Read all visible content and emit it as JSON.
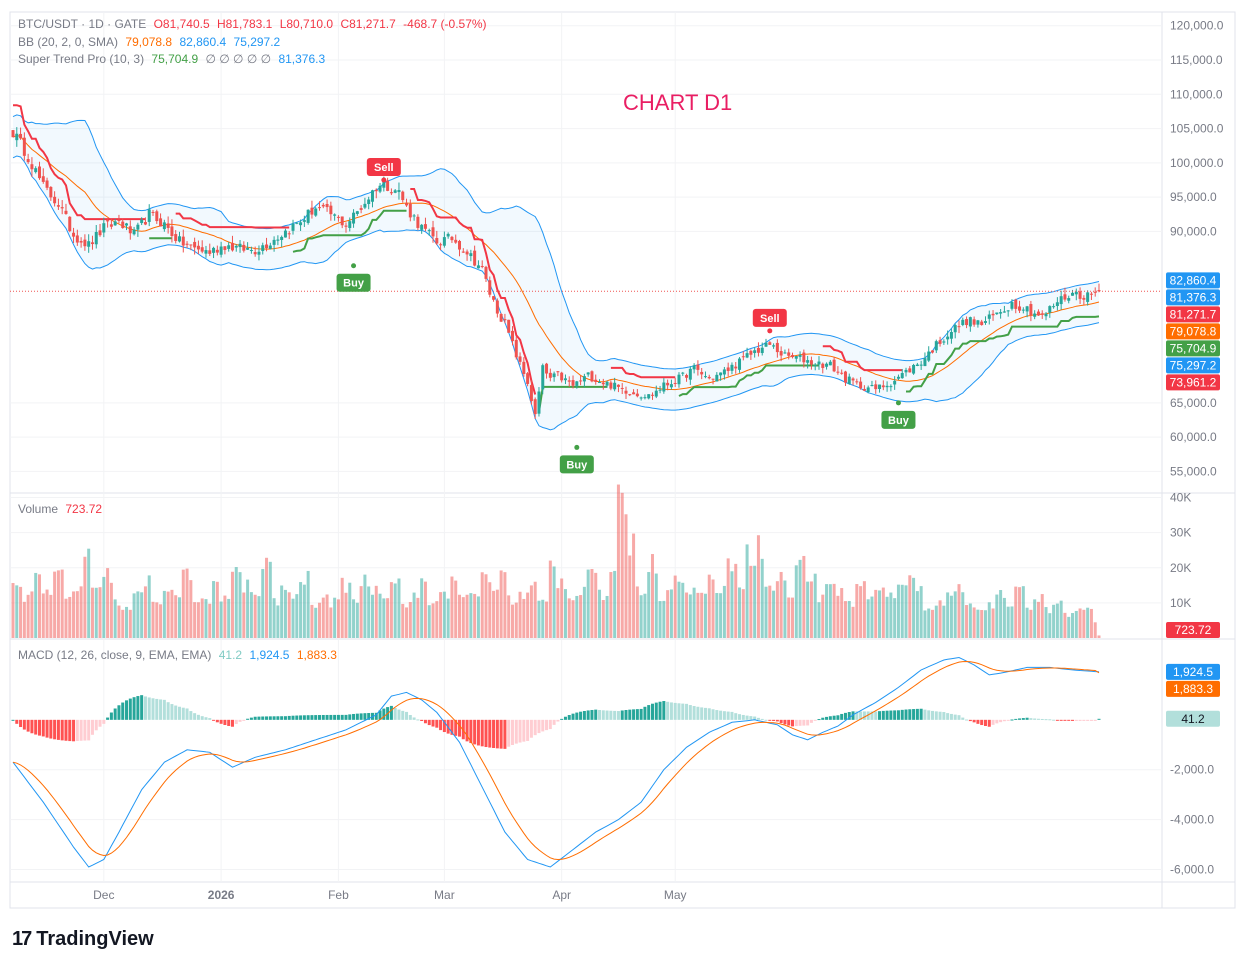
{
  "legend": {
    "symbol": "BTC/USDT · 1D · GATE",
    "ohlc": {
      "o": "O81,740.5",
      "h": "H81,783.1",
      "l": "L80,710.0",
      "c": "C81,271.7",
      "chg": "-468.7 (-0.57%)"
    },
    "bb_label": "BB (20, 2, 0, SMA)",
    "bb_values": [
      "79,078.8",
      "82,860.4",
      "75,297.2"
    ],
    "st_label": "Super Trend Pro (10, 3)",
    "st_value": "75,704.9",
    "st_empty": "∅ ∅ ∅ ∅ ∅",
    "st_value2": "81,376.3",
    "volume_label": "Volume",
    "volume_value": "723.72",
    "macd_label": "MACD (12, 26, close, 9, EMA, EMA)",
    "macd_values": [
      "41.2",
      "1,924.5",
      "1,883.3"
    ]
  },
  "title": "CHART D1",
  "logo_text": "TradingView",
  "colors": {
    "up": "#26a69a",
    "down": "#ef5350",
    "bb_basis": "#ff6d00",
    "bb_band": "#2196f3",
    "st_up": "#43a047",
    "st_down": "#f23645"
  },
  "chart_data": {
    "type": "candlestick",
    "title": "CHART D1",
    "price_axis": {
      "ticks": [
        "120,000.0",
        "115,000.0",
        "110,000.0",
        "105,000.0",
        "100,000.0",
        "95,000.0",
        "90,000.0",
        "65,000.0",
        "60,000.0",
        "55,000.0"
      ],
      "range": [
        52000,
        122000
      ]
    },
    "volume_axis": {
      "ticks": [
        "40K",
        "30K",
        "20K",
        "10K"
      ],
      "range": [
        0,
        41000
      ]
    },
    "macd_axis": {
      "ticks": [
        "-2,000.0",
        "-4,000.0",
        "-6,000.0"
      ],
      "range": [
        -6500,
        3200
      ]
    },
    "time_labels": [
      "Dec",
      "2026",
      "Feb",
      "Mar",
      "Apr",
      "May"
    ],
    "time_label_dates": [
      "2025-12-01",
      "2026-01-01",
      "2026-02-01",
      "2026-03-01",
      "2026-04-01",
      "2026-05-01"
    ],
    "first_date": "2025-11-07",
    "last_date": "2026-05-15",
    "close_anchors": [
      [
        0,
        104500
      ],
      [
        4,
        101000
      ],
      [
        8,
        96500
      ],
      [
        12,
        94000
      ],
      [
        16,
        89500
      ],
      [
        20,
        88000
      ],
      [
        24,
        90500
      ],
      [
        28,
        91500
      ],
      [
        32,
        89500
      ],
      [
        36,
        92500
      ],
      [
        40,
        91000
      ],
      [
        44,
        88500
      ],
      [
        48,
        87500
      ],
      [
        52,
        87000
      ],
      [
        56,
        88000
      ],
      [
        60,
        87500
      ],
      [
        64,
        87300
      ],
      [
        68,
        88500
      ],
      [
        72,
        90000
      ],
      [
        76,
        91500
      ],
      [
        80,
        93500
      ],
      [
        84,
        92500
      ],
      [
        88,
        91000
      ],
      [
        92,
        93500
      ],
      [
        96,
        96500
      ],
      [
        98,
        97000
      ],
      [
        102,
        95800
      ],
      [
        104,
        93500
      ],
      [
        108,
        90500
      ],
      [
        112,
        88500
      ],
      [
        116,
        89000
      ],
      [
        120,
        87000
      ],
      [
        124,
        84500
      ],
      [
        126,
        81000
      ],
      [
        128,
        78500
      ],
      [
        130,
        76500
      ],
      [
        132,
        73500
      ],
      [
        134,
        70500
      ],
      [
        136,
        68000
      ],
      [
        138,
        63000
      ],
      [
        140,
        70000
      ],
      [
        142,
        68500
      ],
      [
        144,
        69000
      ],
      [
        148,
        67500
      ],
      [
        152,
        69000
      ],
      [
        156,
        68000
      ],
      [
        160,
        67200
      ],
      [
        164,
        66500
      ],
      [
        168,
        66000
      ],
      [
        172,
        67500
      ],
      [
        176,
        68500
      ],
      [
        180,
        70000
      ],
      [
        184,
        68500
      ],
      [
        188,
        69500
      ],
      [
        192,
        71000
      ],
      [
        196,
        72500
      ],
      [
        200,
        73500
      ],
      [
        204,
        71800
      ],
      [
        208,
        71500
      ],
      [
        212,
        70800
      ],
      [
        216,
        70500
      ],
      [
        220,
        68500
      ],
      [
        224,
        67500
      ],
      [
        228,
        67000
      ],
      [
        232,
        68000
      ],
      [
        236,
        69500
      ],
      [
        240,
        71000
      ],
      [
        244,
        73500
      ],
      [
        248,
        75500
      ],
      [
        252,
        77000
      ],
      [
        256,
        76500
      ],
      [
        260,
        78000
      ],
      [
        264,
        79500
      ],
      [
        268,
        78800
      ],
      [
        272,
        77500
      ],
      [
        276,
        79800
      ],
      [
        280,
        81000
      ],
      [
        284,
        80600
      ],
      [
        287,
        81271.7
      ]
    ],
    "volume_values": [
      15000,
      12000,
      20000,
      12000,
      18000,
      11000,
      14000,
      23000,
      13000,
      18000,
      10000,
      8000,
      12000,
      16000,
      11000,
      14000,
      12000,
      19000,
      9000,
      10000,
      17000,
      12000,
      18000,
      15000,
      12000,
      21000,
      10000,
      14000,
      11000,
      17000,
      9000,
      13000,
      10000,
      15000,
      11000,
      16000,
      14000,
      13000,
      17000,
      9000,
      12000,
      15000,
      10000,
      13000,
      18000,
      11000,
      12000,
      20000,
      14000,
      19000,
      11000,
      12000,
      15000,
      10000,
      21000,
      16000,
      12000,
      14000,
      20000,
      12000,
      17000,
      38000,
      27000,
      14000,
      21000,
      11000,
      16000,
      15000,
      14000,
      12000,
      19000,
      13000,
      22000,
      16000,
      24000,
      26000,
      14000,
      17000,
      12000,
      21000,
      18000,
      11000,
      16000,
      13000,
      10000,
      15000,
      11000,
      13000,
      12000,
      17000,
      16000,
      14000,
      9000,
      10000,
      12000,
      14000,
      11000,
      8000,
      9000,
      12000,
      10000,
      13000,
      9000,
      11000,
      8000,
      10000,
      7000,
      9000,
      8000,
      5000
    ],
    "macd_anchors": [
      [
        0,
        -1700
      ],
      [
        8,
        -3300
      ],
      [
        16,
        -5100
      ],
      [
        20,
        -5900
      ],
      [
        24,
        -5600
      ],
      [
        28,
        -4500
      ],
      [
        34,
        -2800
      ],
      [
        40,
        -1700
      ],
      [
        46,
        -1200
      ],
      [
        52,
        -1300
      ],
      [
        58,
        -1900
      ],
      [
        64,
        -1500
      ],
      [
        72,
        -1200
      ],
      [
        80,
        -800
      ],
      [
        88,
        -400
      ],
      [
        96,
        200
      ],
      [
        100,
        950
      ],
      [
        104,
        1100
      ],
      [
        108,
        800
      ],
      [
        112,
        300
      ],
      [
        118,
        -900
      ],
      [
        124,
        -2700
      ],
      [
        130,
        -4500
      ],
      [
        136,
        -5600
      ],
      [
        142,
        -5900
      ],
      [
        148,
        -5200
      ],
      [
        154,
        -4500
      ],
      [
        160,
        -4000
      ],
      [
        166,
        -3300
      ],
      [
        172,
        -2000
      ],
      [
        178,
        -1100
      ],
      [
        184,
        -500
      ],
      [
        190,
        -100
      ],
      [
        196,
        0
      ],
      [
        202,
        -200
      ],
      [
        206,
        -600
      ],
      [
        210,
        -800
      ],
      [
        214,
        -500
      ],
      [
        218,
        -250
      ],
      [
        222,
        200
      ],
      [
        228,
        700
      ],
      [
        234,
        1300
      ],
      [
        240,
        2000
      ],
      [
        246,
        2400
      ],
      [
        250,
        2500
      ],
      [
        254,
        2200
      ],
      [
        258,
        1800
      ],
      [
        262,
        1900
      ],
      [
        268,
        2100
      ],
      [
        274,
        2100
      ],
      [
        280,
        2000
      ],
      [
        287,
        1924.5
      ]
    ],
    "signals": [
      {
        "label": "Sell"
      },
      {
        "label": "Buy"
      },
      {
        "label": "Buy"
      },
      {
        "label": "Sell"
      },
      {
        "label": "Buy"
      }
    ],
    "signal_positions": [
      [
        98,
        97500,
        "above"
      ],
      [
        90,
        85000,
        "below"
      ],
      [
        149,
        58500,
        "below"
      ],
      [
        200,
        75500,
        "above"
      ],
      [
        234,
        65000,
        "below"
      ]
    ],
    "last_markers": {
      "price": [
        {
          "label": "82,860.4",
          "color": "#2196f3"
        },
        {
          "label": "81,376.3",
          "color": "#2196f3"
        },
        {
          "label": "81,271.7",
          "color": "#f23645"
        },
        {
          "label": "79,078.8",
          "color": "#ff6d00"
        },
        {
          "label": "75,704.9",
          "color": "#43a047"
        },
        {
          "label": "75,297.2",
          "color": "#2196f3"
        },
        {
          "label": "73,961.2",
          "color": "#f23645"
        }
      ],
      "volume": {
        "label": "723.72",
        "color": "#f23645"
      },
      "macd": [
        {
          "label": "1,924.5",
          "color": "#2196f3"
        },
        {
          "label": "1,883.3",
          "color": "#ff6d00"
        },
        {
          "label": "41.2",
          "color": "#b2dfdb"
        }
      ]
    },
    "marker_prices": [
      82860.4,
      81376.3,
      81271.7,
      79078.8,
      75704.9,
      75297.2,
      73961.2
    ],
    "marker_macd": [
      1924.5,
      1883.3,
      41.2
    ],
    "grid": true
  }
}
